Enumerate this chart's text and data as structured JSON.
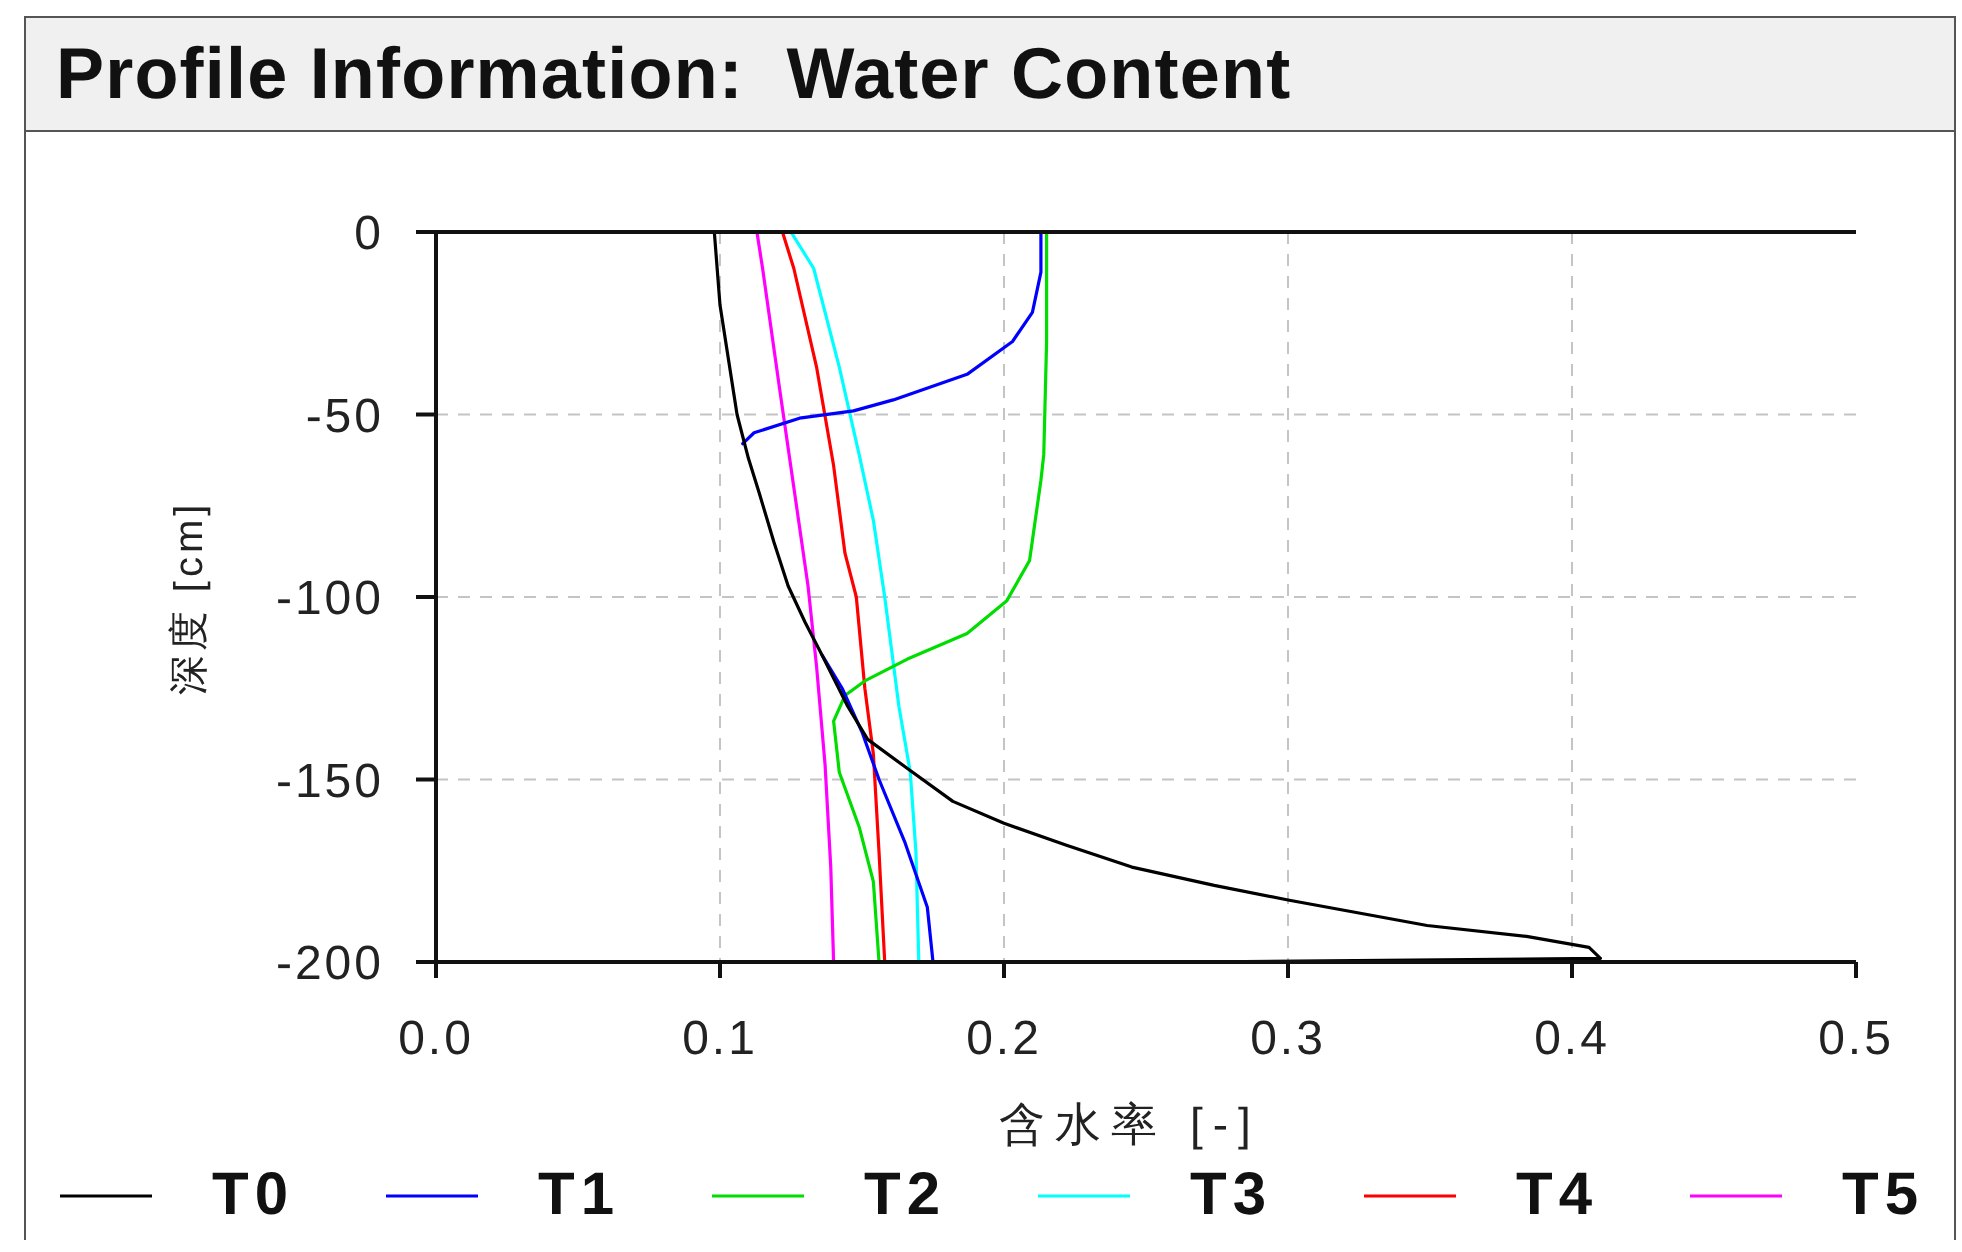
{
  "chart_data": {
    "type": "line",
    "title": "Profile Information:  Water Content",
    "xlabel": "含水率 [-]",
    "ylabel": "深度 [cm]",
    "xlim": [
      0,
      0.5
    ],
    "ylim": [
      -200,
      0
    ],
    "xticks": [
      {
        "value": 0,
        "label": "0.0"
      },
      0.1,
      0.2,
      0.3,
      0.4,
      0.5
    ],
    "yticks": [
      -200,
      -150,
      -100,
      -50,
      0
    ],
    "grid": true,
    "legend": "bottom",
    "series": [
      {
        "name": "T0",
        "color": "#000000",
        "x": [
          0.098,
          0.1,
          0.103,
          0.106,
          0.11,
          0.114,
          0.119,
          0.124,
          0.13,
          0.136,
          0.145,
          0.152,
          0.166,
          0.182,
          0.2,
          0.222,
          0.245,
          0.274,
          0.3,
          0.349,
          0.384,
          0.406,
          0.41,
          0.265
        ],
        "values": [
          0,
          -20,
          -35,
          -50,
          -62,
          -72,
          -85,
          -97,
          -107,
          -116,
          -130,
          -139,
          -147,
          -156,
          -162,
          -168,
          -174,
          -179,
          -183,
          -190,
          -193,
          -196,
          -199,
          -200
        ]
      },
      {
        "name": "T1",
        "color": "#0000ff",
        "x": [
          0.213,
          0.213,
          0.21,
          0.203,
          0.187,
          0.161,
          0.147,
          0.128,
          0.112,
          0.108,
          0.122,
          0.136,
          0.143,
          0.15,
          0.156,
          0.165,
          0.173,
          0.175
        ],
        "values": [
          0,
          -11,
          -22,
          -30,
          -39,
          -46,
          -49,
          -51,
          -55,
          -58,
          null,
          -116,
          -125,
          -137,
          -150,
          -167,
          -185,
          -200
        ]
      },
      {
        "name": "T2",
        "color": "#00dd00",
        "x": [
          0.215,
          0.215,
          0.214,
          0.213,
          0.209,
          0.201,
          0.187,
          0.166,
          0.151,
          0.144,
          0.14,
          0.142,
          0.149,
          0.154,
          0.156
        ],
        "values": [
          0,
          -30,
          -61,
          -68,
          -90,
          -101,
          -110,
          -117,
          -123,
          -127,
          -134,
          -148,
          -163,
          -178,
          -200
        ]
      },
      {
        "name": "T3",
        "color": "#00ffff",
        "x": [
          0.125,
          0.133,
          0.142,
          0.149,
          0.154,
          0.158,
          0.163,
          0.167,
          0.169,
          0.17
        ],
        "values": [
          0,
          -10,
          -37,
          -61,
          -79,
          -100,
          -130,
          -148,
          -170,
          -200
        ]
      },
      {
        "name": "T4",
        "color": "#ff0000",
        "x": [
          0.122,
          0.126,
          0.134,
          0.14,
          0.144,
          0.148,
          0.151,
          0.154,
          0.156,
          0.158
        ],
        "values": [
          0,
          -10,
          -37,
          -64,
          -88,
          -100,
          -125,
          -143,
          -170,
          -200
        ]
      },
      {
        "name": "T5",
        "color": "#ff00ff",
        "x": [
          0.113,
          0.115,
          0.121,
          0.126,
          0.131,
          0.134,
          0.137,
          0.139,
          0.14
        ],
        "values": [
          0,
          -10,
          -43,
          -70,
          -97,
          -119,
          -146,
          -174,
          -200
        ]
      }
    ]
  }
}
